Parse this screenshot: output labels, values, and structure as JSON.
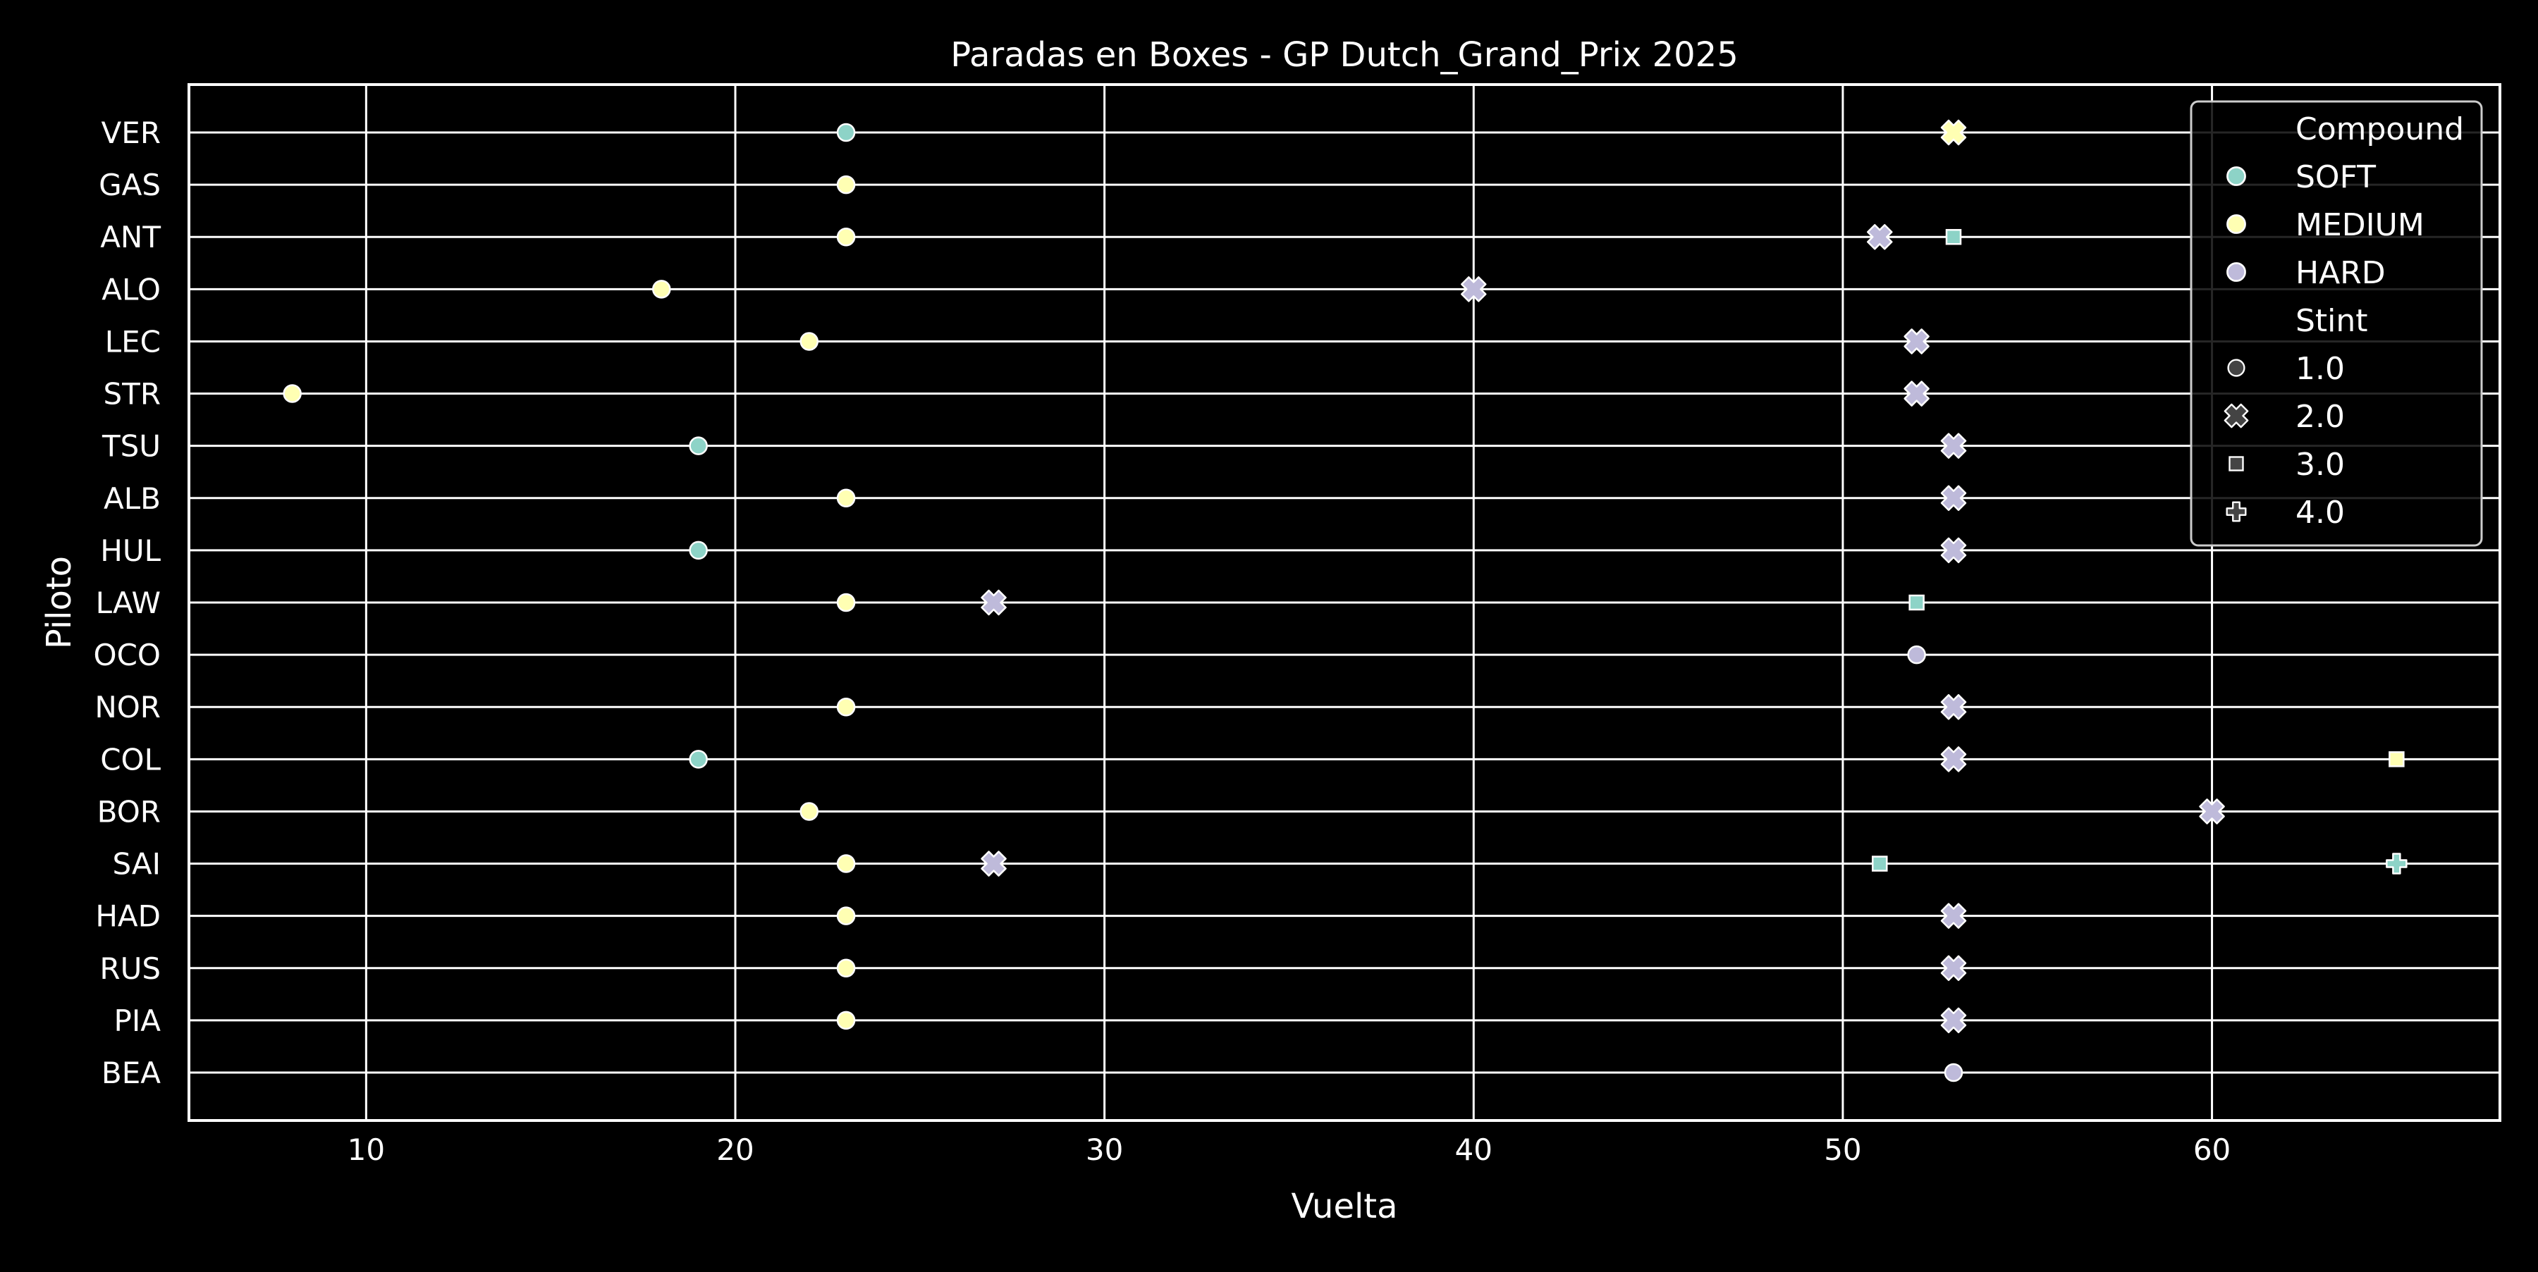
{
  "chart_data": {
    "type": "scatter",
    "title": "Paradas en Boxes - GP Dutch_Grand_Prix 2025",
    "xlabel": "Vuelta",
    "ylabel": "Piloto",
    "xlim": [
      5.2,
      67.8
    ],
    "xticks": [
      10,
      20,
      30,
      40,
      50,
      60
    ],
    "categories": [
      "VER",
      "GAS",
      "ANT",
      "ALO",
      "LEC",
      "STR",
      "TSU",
      "ALB",
      "HUL",
      "LAW",
      "OCO",
      "NOR",
      "COL",
      "BOR",
      "SAI",
      "HAD",
      "RUS",
      "PIA",
      "BEA"
    ],
    "grid": true,
    "legend_position": "top-right",
    "compound_colors": {
      "SOFT": "#8dd3c7",
      "MEDIUM": "#ffffb3",
      "HARD": "#bebada"
    },
    "legend": {
      "compound_title": "Compound",
      "compounds": [
        "SOFT",
        "MEDIUM",
        "HARD"
      ],
      "stint_title": "Stint",
      "stints": [
        {
          "label": "1.0",
          "marker": "circle"
        },
        {
          "label": "2.0",
          "marker": "x"
        },
        {
          "label": "3.0",
          "marker": "square"
        },
        {
          "label": "4.0",
          "marker": "plus"
        }
      ]
    },
    "points": [
      {
        "driver": "VER",
        "lap": 23,
        "compound": "SOFT",
        "stint": 1
      },
      {
        "driver": "VER",
        "lap": 53,
        "compound": "MEDIUM",
        "stint": 2
      },
      {
        "driver": "GAS",
        "lap": 23,
        "compound": "MEDIUM",
        "stint": 1
      },
      {
        "driver": "ANT",
        "lap": 23,
        "compound": "MEDIUM",
        "stint": 1
      },
      {
        "driver": "ANT",
        "lap": 51,
        "compound": "HARD",
        "stint": 2
      },
      {
        "driver": "ANT",
        "lap": 53,
        "compound": "SOFT",
        "stint": 3
      },
      {
        "driver": "ALO",
        "lap": 18,
        "compound": "MEDIUM",
        "stint": 1
      },
      {
        "driver": "ALO",
        "lap": 40,
        "compound": "HARD",
        "stint": 2
      },
      {
        "driver": "LEC",
        "lap": 22,
        "compound": "MEDIUM",
        "stint": 1
      },
      {
        "driver": "LEC",
        "lap": 52,
        "compound": "HARD",
        "stint": 2
      },
      {
        "driver": "STR",
        "lap": 8,
        "compound": "MEDIUM",
        "stint": 1
      },
      {
        "driver": "STR",
        "lap": 52,
        "compound": "HARD",
        "stint": 2
      },
      {
        "driver": "TSU",
        "lap": 19,
        "compound": "SOFT",
        "stint": 1
      },
      {
        "driver": "TSU",
        "lap": 53,
        "compound": "HARD",
        "stint": 2
      },
      {
        "driver": "ALB",
        "lap": 23,
        "compound": "MEDIUM",
        "stint": 1
      },
      {
        "driver": "ALB",
        "lap": 53,
        "compound": "HARD",
        "stint": 2
      },
      {
        "driver": "HUL",
        "lap": 19,
        "compound": "SOFT",
        "stint": 1
      },
      {
        "driver": "HUL",
        "lap": 53,
        "compound": "HARD",
        "stint": 2
      },
      {
        "driver": "LAW",
        "lap": 23,
        "compound": "MEDIUM",
        "stint": 1
      },
      {
        "driver": "LAW",
        "lap": 27,
        "compound": "HARD",
        "stint": 2
      },
      {
        "driver": "LAW",
        "lap": 52,
        "compound": "SOFT",
        "stint": 3
      },
      {
        "driver": "OCO",
        "lap": 52,
        "compound": "HARD",
        "stint": 1
      },
      {
        "driver": "NOR",
        "lap": 23,
        "compound": "MEDIUM",
        "stint": 1
      },
      {
        "driver": "NOR",
        "lap": 53,
        "compound": "HARD",
        "stint": 2
      },
      {
        "driver": "COL",
        "lap": 19,
        "compound": "SOFT",
        "stint": 1
      },
      {
        "driver": "COL",
        "lap": 53,
        "compound": "HARD",
        "stint": 2
      },
      {
        "driver": "COL",
        "lap": 65,
        "compound": "MEDIUM",
        "stint": 3
      },
      {
        "driver": "BOR",
        "lap": 22,
        "compound": "MEDIUM",
        "stint": 1
      },
      {
        "driver": "BOR",
        "lap": 60,
        "compound": "HARD",
        "stint": 2
      },
      {
        "driver": "SAI",
        "lap": 23,
        "compound": "MEDIUM",
        "stint": 1
      },
      {
        "driver": "SAI",
        "lap": 27,
        "compound": "HARD",
        "stint": 2
      },
      {
        "driver": "SAI",
        "lap": 51,
        "compound": "SOFT",
        "stint": 3
      },
      {
        "driver": "SAI",
        "lap": 65,
        "compound": "SOFT",
        "stint": 4
      },
      {
        "driver": "HAD",
        "lap": 23,
        "compound": "MEDIUM",
        "stint": 1
      },
      {
        "driver": "HAD",
        "lap": 53,
        "compound": "HARD",
        "stint": 2
      },
      {
        "driver": "RUS",
        "lap": 23,
        "compound": "MEDIUM",
        "stint": 1
      },
      {
        "driver": "RUS",
        "lap": 53,
        "compound": "HARD",
        "stint": 2
      },
      {
        "driver": "PIA",
        "lap": 23,
        "compound": "MEDIUM",
        "stint": 1
      },
      {
        "driver": "PIA",
        "lap": 53,
        "compound": "HARD",
        "stint": 2
      },
      {
        "driver": "BEA",
        "lap": 53,
        "compound": "HARD",
        "stint": 1
      }
    ]
  }
}
